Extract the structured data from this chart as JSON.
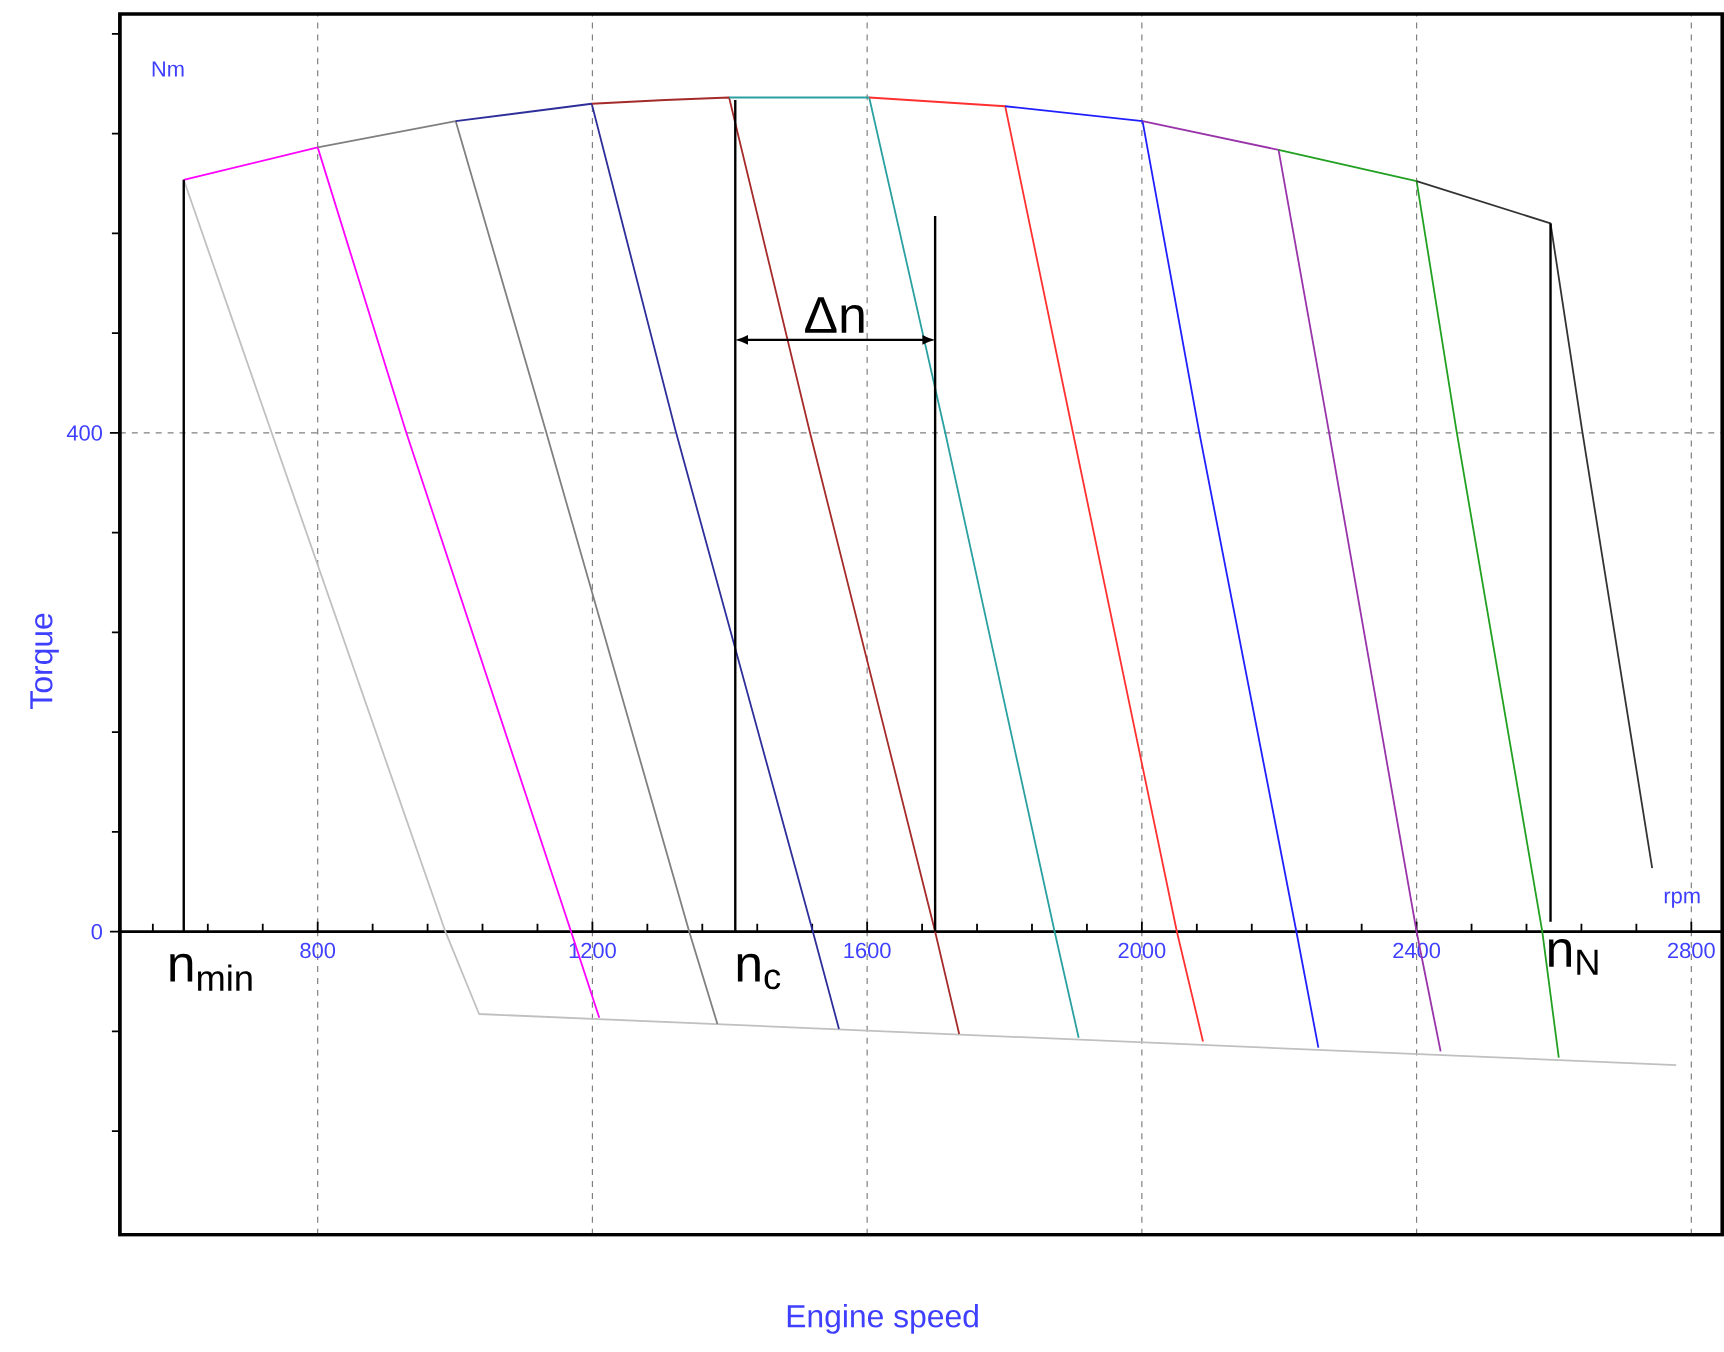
{
  "chart_data": {
    "type": "line",
    "xlabel": "Engine speed",
    "ylabel": "Torque",
    "xlim": [
      512,
      2845
    ],
    "ylim": [
      -243,
      736
    ],
    "xticks": [
      {
        "value": 560,
        "label": null
      },
      {
        "value": 640,
        "label": null
      },
      {
        "value": 720,
        "label": null
      },
      800,
      {
        "value": 880,
        "label": null
      },
      {
        "value": 960,
        "label": null
      },
      {
        "value": 1040,
        "label": null
      },
      {
        "value": 1120,
        "label": null
      },
      1200,
      {
        "value": 1280,
        "label": null
      },
      {
        "value": 1360,
        "label": null
      },
      {
        "value": 1440,
        "label": null
      },
      {
        "value": 1520,
        "label": null
      },
      1600,
      {
        "value": 1680,
        "label": null
      },
      {
        "value": 1760,
        "label": null
      },
      {
        "value": 1840,
        "label": null
      },
      {
        "value": 1920,
        "label": null
      },
      2000,
      {
        "value": 2080,
        "label": null
      },
      {
        "value": 2160,
        "label": null
      },
      {
        "value": 2240,
        "label": null
      },
      {
        "value": 2320,
        "label": null
      },
      2400,
      {
        "value": 2480,
        "label": null
      },
      {
        "value": 2560,
        "label": null
      },
      {
        "value": 2640,
        "label": null
      },
      {
        "value": 2720,
        "label": null
      },
      2800
    ],
    "yticks": [
      {
        "value": -160,
        "label": null
      },
      {
        "value": -80,
        "label": null
      },
      0,
      {
        "value": 80,
        "label": null
      },
      {
        "value": 160,
        "label": null
      },
      {
        "value": 240,
        "label": null
      },
      {
        "value": 320,
        "label": null
      },
      400,
      {
        "value": 480,
        "label": null
      },
      {
        "value": 560,
        "label": null
      },
      {
        "value": 640,
        "label": null
      },
      {
        "value": 720,
        "label": null
      }
    ],
    "grid": true,
    "series": [
      {
        "color": "#c0c0c0",
        "x": [
          605,
          716,
          986,
          1035,
          2778
        ],
        "values": [
          603,
          427,
          0,
          -66,
          -107
        ]
      },
      {
        "color": "#ff00ff",
        "x": [
          605,
          800,
          928,
          1169,
          1210
        ],
        "values": [
          603,
          629,
          402,
          0,
          -69
        ]
      },
      {
        "color": "#808080",
        "x": [
          800,
          1001,
          1132,
          1341,
          1382
        ],
        "values": [
          629,
          650,
          402,
          0,
          -74
        ]
      },
      {
        "color": "#2e2e9a",
        "x": [
          1001,
          1199,
          1321,
          1521,
          1559
        ],
        "values": [
          650,
          664,
          402,
          0,
          -78
        ]
      },
      {
        "color": "#a52a2a",
        "x": [
          1199,
          1306,
          1399,
          1516,
          1699,
          1734
        ],
        "values": [
          664,
          667,
          669,
          402,
          0,
          -82
        ]
      },
      {
        "color": "#2aa0a0",
        "x": [
          1399,
          1603,
          1713,
          1873,
          1908
        ],
        "values": [
          669,
          669,
          402,
          0,
          -85
        ]
      },
      {
        "color": "#ff3030",
        "x": [
          1603,
          1801,
          1899,
          2051,
          2089
        ],
        "values": [
          669,
          662,
          402,
          0,
          -88
        ]
      },
      {
        "color": "#2020ff",
        "x": [
          1801,
          2001,
          2083,
          2225,
          2257
        ],
        "values": [
          662,
          650,
          402,
          0,
          -93
        ]
      },
      {
        "color": "#9933aa",
        "x": [
          2001,
          2199,
          2272,
          2400,
          2435
        ],
        "values": [
          650,
          627,
          402,
          0,
          -96
        ]
      },
      {
        "color": "#22a022",
        "x": [
          2199,
          2400,
          2458,
          2583,
          2607
        ],
        "values": [
          627,
          602,
          402,
          0,
          -101
        ]
      },
      {
        "color": "#333333",
        "x": [
          2400,
          2595,
          2641,
          2743
        ],
        "values": [
          602,
          568,
          402,
          51
        ]
      },
      {
        "color": "#000000",
        "x": [
          605,
          605
        ],
        "values": [
          603,
          0
        ]
      },
      {
        "color": "#000000",
        "x": [
          1408,
          1408
        ],
        "values": [
          667,
          0
        ]
      },
      {
        "color": "#000000",
        "x": [
          1699,
          1699
        ],
        "values": [
          574,
          0
        ]
      },
      {
        "color": "#000000",
        "x": [
          2595,
          2595
        ],
        "values": [
          568,
          8
        ]
      }
    ],
    "annotations": [
      "Nm",
      "rpm",
      "n$_{min}$",
      "n$_{c}$",
      "n$_{N}$",
      "Δn"
    ]
  }
}
